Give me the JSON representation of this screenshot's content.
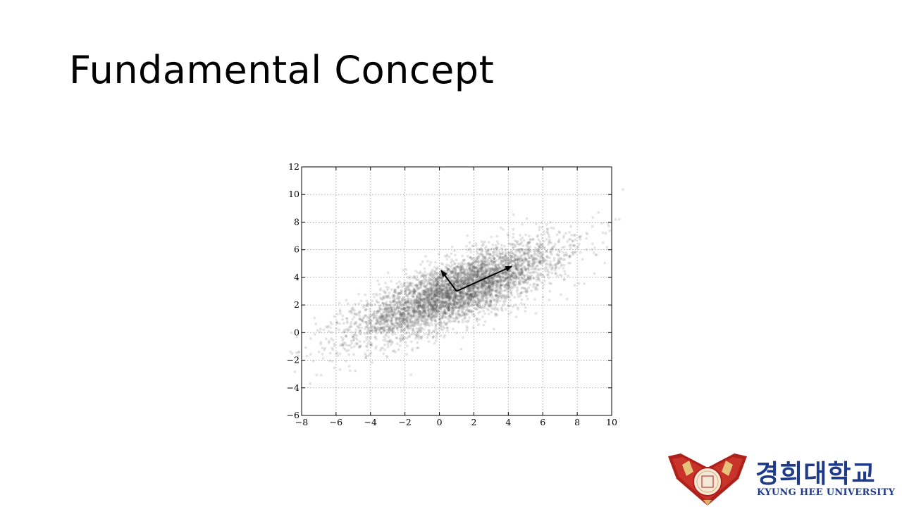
{
  "slide": {
    "title": "Fundamental Concept"
  },
  "logo": {
    "name_ko": "경희대학교",
    "name_en": "KYUNG HEE UNIVERSITY"
  },
  "colors": {
    "points": "#555555",
    "grid": "#9a9a9a",
    "accent_logo": "#1f3a8a",
    "seal_red": "#b0201a"
  },
  "chart_data": {
    "type": "scatter",
    "title": "",
    "xlabel": "",
    "ylabel": "",
    "xlim": [
      -8,
      10
    ],
    "ylim": [
      -6,
      12
    ],
    "xticks": [
      "−8",
      "−6",
      "−4",
      "−2",
      "0",
      "2",
      "4",
      "6",
      "8",
      "10"
    ],
    "yticks": [
      "−6",
      "−4",
      "−2",
      "0",
      "2",
      "4",
      "6",
      "8",
      "10",
      "12"
    ],
    "grid": true,
    "distribution": {
      "n_points": 5000,
      "mean": [
        1,
        3
      ],
      "principal_std": [
        3.3,
        1.0
      ],
      "principal_angle_deg": 27
    },
    "vectors": [
      {
        "from": [
          1,
          3
        ],
        "to": [
          4.2,
          4.8
        ]
      },
      {
        "from": [
          1,
          3
        ],
        "to": [
          0.1,
          4.5
        ]
      }
    ]
  }
}
